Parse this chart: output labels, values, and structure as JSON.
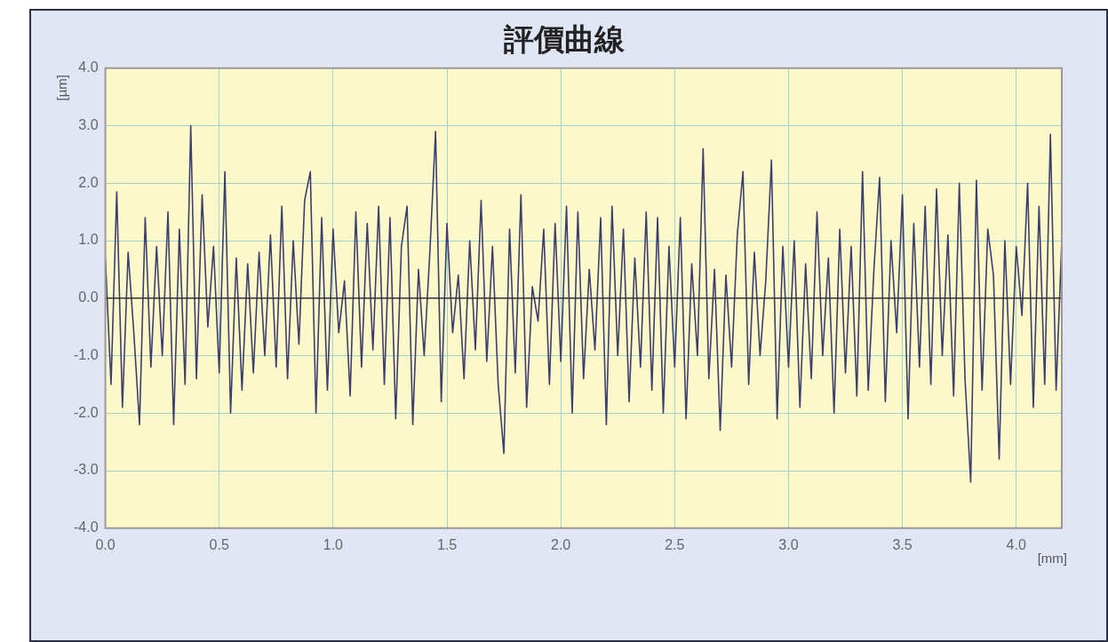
{
  "chart_data": {
    "type": "line",
    "title": "評價曲線",
    "xlabel": "[mm]",
    "ylabel": "[µm]",
    "x": [
      0,
      0.025,
      0.05,
      0.075,
      0.1,
      0.125,
      0.15,
      0.175,
      0.2,
      0.225,
      0.25,
      0.275,
      0.3,
      0.325,
      0.35,
      0.375,
      0.4,
      0.425,
      0.45,
      0.475,
      0.5,
      0.525,
      0.55,
      0.575,
      0.6,
      0.625,
      0.65,
      0.675,
      0.7,
      0.725,
      0.75,
      0.775,
      0.8,
      0.825,
      0.85,
      0.875,
      0.9,
      0.925,
      0.95,
      0.975,
      1,
      1.025,
      1.05,
      1.075,
      1.1,
      1.125,
      1.15,
      1.175,
      1.2,
      1.225,
      1.25,
      1.275,
      1.3,
      1.325,
      1.35,
      1.375,
      1.4,
      1.425,
      1.45,
      1.475,
      1.5,
      1.525,
      1.55,
      1.575,
      1.6,
      1.625,
      1.65,
      1.675,
      1.7,
      1.725,
      1.75,
      1.775,
      1.8,
      1.825,
      1.85,
      1.875,
      1.9,
      1.925,
      1.95,
      1.975,
      2,
      2.025,
      2.05,
      2.075,
      2.1,
      2.125,
      2.15,
      2.175,
      2.2,
      2.225,
      2.25,
      2.275,
      2.3,
      2.325,
      2.35,
      2.375,
      2.4,
      2.425,
      2.45,
      2.475,
      2.5,
      2.525,
      2.55,
      2.575,
      2.6,
      2.625,
      2.65,
      2.675,
      2.7,
      2.725,
      2.75,
      2.775,
      2.8,
      2.825,
      2.85,
      2.875,
      2.9,
      2.925,
      2.95,
      2.975,
      3,
      3.025,
      3.05,
      3.075,
      3.1,
      3.125,
      3.15,
      3.175,
      3.2,
      3.225,
      3.25,
      3.275,
      3.3,
      3.325,
      3.35,
      3.375,
      3.4,
      3.425,
      3.45,
      3.475,
      3.5,
      3.525,
      3.55,
      3.575,
      3.6,
      3.625,
      3.65,
      3.675,
      3.7,
      3.725,
      3.75,
      3.775,
      3.8,
      3.825,
      3.85,
      3.875,
      3.9,
      3.925,
      3.95,
      3.975,
      4,
      4.025,
      4.05,
      4.075,
      4.1,
      4.125,
      4.15,
      4.175,
      4.2
    ],
    "series": [
      {
        "color": "#3c3f6e",
        "values": [
          0.7,
          -1.5,
          1.85,
          -1.9,
          0.8,
          -0.6,
          -2.2,
          1.4,
          -1.2,
          0.9,
          -1.0,
          1.5,
          -2.2,
          1.2,
          -1.5,
          3.0,
          -1.4,
          1.8,
          -0.5,
          0.9,
          -1.3,
          2.2,
          -2.0,
          0.7,
          -1.6,
          0.6,
          -1.3,
          0.8,
          -1.0,
          1.1,
          -1.2,
          1.6,
          -1.4,
          1.0,
          -0.8,
          1.7,
          2.2,
          -2.0,
          1.4,
          -1.6,
          1.2,
          -0.6,
          0.3,
          -1.7,
          1.5,
          -1.2,
          1.3,
          -0.9,
          1.6,
          -1.5,
          1.4,
          -2.1,
          0.9,
          1.6,
          -2.2,
          0.5,
          -1.0,
          0.8,
          2.9,
          -1.8,
          1.3,
          -0.6,
          0.4,
          -1.4,
          1.0,
          -0.9,
          1.7,
          -1.1,
          0.9,
          -1.5,
          -2.7,
          1.2,
          -1.3,
          1.8,
          -1.9,
          0.2,
          -0.4,
          1.2,
          -1.5,
          1.3,
          -1.1,
          1.6,
          -2.0,
          1.5,
          -1.4,
          0.5,
          -0.9,
          1.4,
          -2.2,
          1.6,
          -1.0,
          1.2,
          -1.8,
          0.7,
          -1.2,
          1.5,
          -1.6,
          1.4,
          -2.0,
          0.9,
          -1.2,
          1.4,
          -2.1,
          0.6,
          -1.0,
          2.6,
          -1.4,
          0.5,
          -2.3,
          0.4,
          -1.2,
          1.1,
          2.2,
          -1.5,
          0.8,
          -1.0,
          0.3,
          2.4,
          -2.1,
          0.9,
          -1.2,
          1.0,
          -1.9,
          0.6,
          -1.4,
          1.5,
          -1.0,
          0.7,
          -2.0,
          1.2,
          -1.3,
          0.9,
          -1.7,
          2.2,
          -1.6,
          0.5,
          2.1,
          -1.8,
          1.0,
          -0.6,
          1.8,
          -2.1,
          1.3,
          -1.2,
          1.6,
          -1.5,
          1.9,
          -1.0,
          1.1,
          -1.7,
          2.0,
          -1.4,
          -3.2,
          2.05,
          -1.6,
          1.2,
          0.4,
          -2.8,
          1.0,
          -1.5,
          0.9,
          -0.3,
          2.0,
          -1.9,
          1.6,
          -1.5,
          2.85,
          -1.6,
          1.0
        ]
      }
    ],
    "xlim": [
      0,
      4.2
    ],
    "xticks": [
      {
        "value": 0,
        "label": "0.0"
      },
      0.5,
      {
        "value": 1,
        "label": "1.0"
      },
      1.5,
      {
        "value": 2,
        "label": "2.0"
      },
      2.5,
      {
        "value": 3,
        "label": "3.0"
      },
      3.5,
      {
        "value": 4,
        "label": "4.0"
      }
    ],
    "ylim": [
      -4,
      4
    ],
    "yticks": [
      {
        "value": -4,
        "label": "-4.0"
      },
      {
        "value": -3,
        "label": "-3.0"
      },
      {
        "value": -2,
        "label": "-2.0"
      },
      {
        "value": -1,
        "label": "-1.0"
      },
      {
        "value": 0,
        "label": "0.0"
      },
      {
        "value": 1,
        "label": "1.0"
      },
      {
        "value": 2,
        "label": "2.0"
      },
      {
        "value": 3,
        "label": "3.0"
      },
      {
        "value": 4,
        "label": "4.0"
      }
    ],
    "ref_lines": [
      {
        "axis": "y",
        "value": 0,
        "color": "#333333"
      }
    ],
    "grid": true,
    "legend": false,
    "marker": "none",
    "line_style": "solid"
  }
}
